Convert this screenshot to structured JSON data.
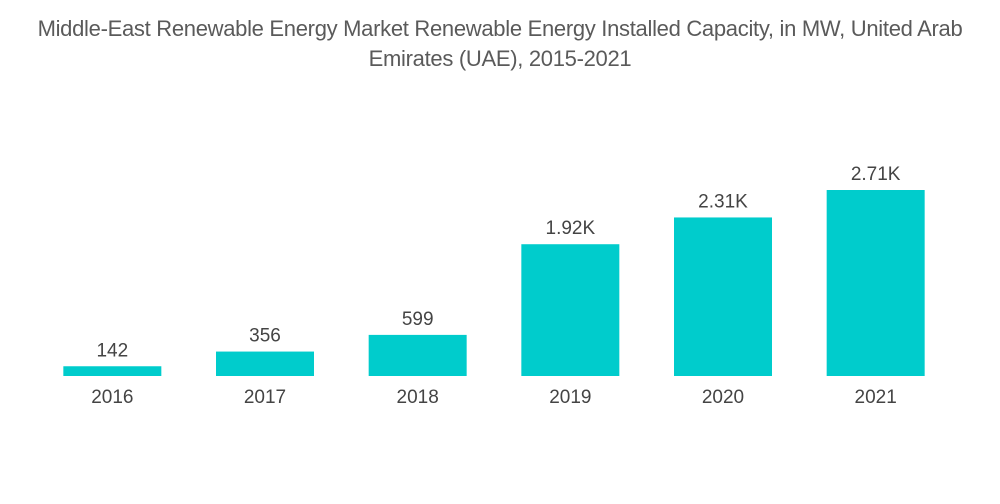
{
  "chart_data": {
    "type": "bar",
    "title": "Middle-East Renewable Energy Market Renewable Energy Installed Capacity, in MW, United Arab Emirates (UAE), 2015-2021",
    "xlabel": "",
    "ylabel": "",
    "categories": [
      "2016",
      "2017",
      "2018",
      "2019",
      "2020",
      "2021"
    ],
    "values": [
      142,
      356,
      599,
      1920,
      2310,
      2710
    ],
    "data_labels": [
      "142",
      "356",
      "599",
      "1.92K",
      "2.31K",
      "2.71K"
    ],
    "ylim": [
      0,
      2710
    ],
    "grid": false,
    "legend": "none",
    "bar_color": "#00CCCC"
  }
}
